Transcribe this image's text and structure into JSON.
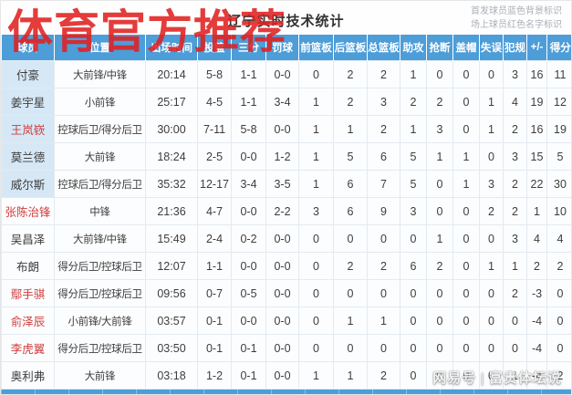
{
  "header": {
    "title": "辽宁实时技术统计",
    "legend": [
      "首发球员蓝色背景标识",
      "场上球员红色名字标识"
    ]
  },
  "watermarks": {
    "top": "体育官方推荐",
    "bottom": "网易号 | 富贵体坛说"
  },
  "colors": {
    "header_blue": "#4d9dd8",
    "starter_cell_blue": "#d6e8f6",
    "oncourt_name_red": "#cf3e3e",
    "watermark_red": "#e02020"
  },
  "table": {
    "columns": [
      "球员",
      "位置",
      "出场时间",
      "投篮",
      "三分",
      "罚球",
      "前篮板",
      "后篮板",
      "总篮板",
      "助攻",
      "抢断",
      "盖帽",
      "失误",
      "犯规",
      "+/-",
      "得分"
    ],
    "rows": [
      {
        "starter": true,
        "on_court": false,
        "cells": [
          "付豪",
          "大前锋/中锋",
          "20:14",
          "5-8",
          "1-1",
          "0-0",
          "0",
          "2",
          "2",
          "1",
          "0",
          "0",
          "0",
          "3",
          "16",
          "11"
        ]
      },
      {
        "starter": true,
        "on_court": false,
        "cells": [
          "姜宇星",
          "小前锋",
          "25:17",
          "4-5",
          "1-1",
          "3-4",
          "1",
          "2",
          "3",
          "2",
          "2",
          "0",
          "1",
          "4",
          "19",
          "12"
        ]
      },
      {
        "starter": true,
        "on_court": true,
        "cells": [
          "王岚嵚",
          "控球后卫/得分后卫",
          "30:00",
          "7-11",
          "5-8",
          "0-0",
          "1",
          "1",
          "2",
          "1",
          "3",
          "0",
          "1",
          "2",
          "16",
          "19"
        ]
      },
      {
        "starter": true,
        "on_court": false,
        "cells": [
          "莫兰德",
          "大前锋",
          "18:24",
          "2-5",
          "0-0",
          "1-2",
          "1",
          "5",
          "6",
          "5",
          "1",
          "1",
          "0",
          "3",
          "15",
          "5"
        ]
      },
      {
        "starter": true,
        "on_court": false,
        "cells": [
          "威尔斯",
          "控球后卫/得分后卫",
          "35:32",
          "12-17",
          "3-4",
          "3-5",
          "1",
          "6",
          "7",
          "5",
          "0",
          "1",
          "3",
          "2",
          "22",
          "30"
        ]
      },
      {
        "starter": false,
        "on_court": true,
        "cells": [
          "张陈治锋",
          "中锋",
          "21:36",
          "4-7",
          "0-0",
          "2-2",
          "3",
          "6",
          "9",
          "3",
          "0",
          "0",
          "2",
          "2",
          "1",
          "10"
        ]
      },
      {
        "starter": false,
        "on_court": false,
        "cells": [
          "吴昌泽",
          "大前锋/中锋",
          "15:49",
          "2-4",
          "0-2",
          "0-0",
          "0",
          "0",
          "0",
          "0",
          "1",
          "0",
          "0",
          "3",
          "4",
          "4"
        ]
      },
      {
        "starter": false,
        "on_court": false,
        "cells": [
          "布朗",
          "得分后卫/控球后卫",
          "12:07",
          "1-1",
          "0-0",
          "0-0",
          "0",
          "2",
          "2",
          "6",
          "2",
          "0",
          "1",
          "1",
          "2",
          "2"
        ]
      },
      {
        "starter": false,
        "on_court": true,
        "cells": [
          "鄢手骐",
          "得分后卫/控球后卫",
          "09:56",
          "0-7",
          "0-5",
          "0-0",
          "0",
          "0",
          "0",
          "0",
          "0",
          "0",
          "0",
          "2",
          "-3",
          "0"
        ]
      },
      {
        "starter": false,
        "on_court": true,
        "cells": [
          "俞泽辰",
          "小前锋/大前锋",
          "03:57",
          "0-1",
          "0-0",
          "0-0",
          "0",
          "1",
          "1",
          "0",
          "0",
          "0",
          "0",
          "0",
          "-4",
          "0"
        ]
      },
      {
        "starter": false,
        "on_court": true,
        "cells": [
          "李虎翼",
          "得分后卫/控球后卫",
          "03:50",
          "0-1",
          "0-1",
          "0-0",
          "0",
          "0",
          "0",
          "0",
          "0",
          "0",
          "0",
          "0",
          "-4",
          "0"
        ]
      },
      {
        "starter": false,
        "on_court": false,
        "cells": [
          "奥利弗",
          "大前锋",
          "03:18",
          "1-2",
          "0-1",
          "0-0",
          "1",
          "1",
          "2",
          "0",
          "0",
          "0",
          "0",
          "1",
          "-4",
          "2"
        ]
      }
    ]
  }
}
